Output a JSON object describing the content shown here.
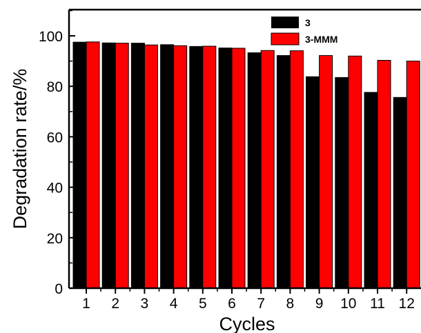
{
  "chart_data": {
    "type": "bar",
    "xlabel": "Cycles",
    "ylabel": "Degradation rate/%",
    "ylim": [
      0,
      110
    ],
    "yticks": [
      0,
      20,
      40,
      60,
      80,
      100
    ],
    "categories": [
      "1",
      "2",
      "3",
      "4",
      "5",
      "6",
      "7",
      "8",
      "9",
      "10",
      "11",
      "12"
    ],
    "series": [
      {
        "name": "3",
        "color": "#000000",
        "values": [
          97.5,
          97.2,
          97.1,
          96.5,
          95.8,
          95.2,
          93.3,
          92.2,
          83.8,
          83.5,
          77.6,
          75.6
        ]
      },
      {
        "name": "3-MMM",
        "color": "#ff0000",
        "values": [
          97.6,
          97.1,
          96.4,
          96.1,
          95.9,
          95.1,
          94.2,
          94.1,
          92.2,
          92.0,
          90.3,
          90.0
        ]
      }
    ],
    "legend_position": "top-right",
    "grid": false
  }
}
